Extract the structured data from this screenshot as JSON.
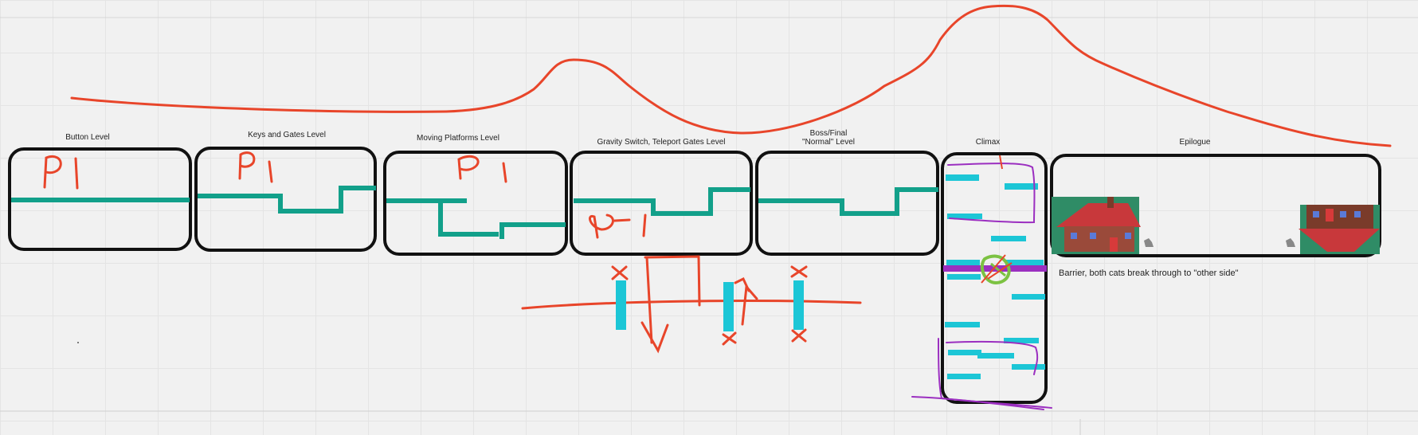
{
  "levels": [
    {
      "label": "Button Level"
    },
    {
      "label": "Keys and Gates Level"
    },
    {
      "label": "Moving Platforms Level"
    },
    {
      "label": "Gravity Switch, Teleport Gates Level"
    },
    {
      "label": "Boss/Final\n\"Normal\" Level"
    },
    {
      "label": "Climax"
    },
    {
      "label": "Epilogue"
    }
  ],
  "annotations": {
    "p1_mark": "P1",
    "barrier_note": "Barrier, both cats break through to \"other side\""
  },
  "colors": {
    "board_bg": "#f1f1f1",
    "box_stroke": "#111111",
    "path_green": "#12a08a",
    "platform_cyan": "#1cc6d6",
    "sketch_red": "#e8452a",
    "barrier_purple": "#9b2fc0",
    "marker_green": "#7cc242"
  }
}
